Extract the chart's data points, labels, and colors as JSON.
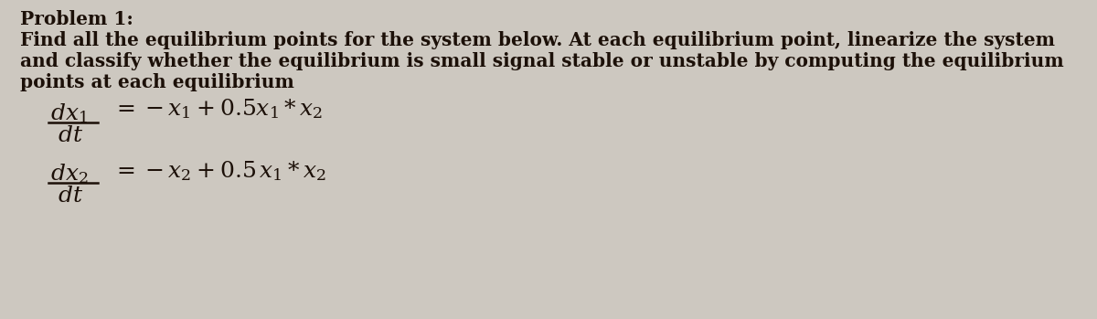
{
  "background_color": "#cdc8c0",
  "problem_label": "Problem 1:",
  "description_line1": "Find all the equilibrium points for the system below. At each equilibrium point, linearize the system",
  "description_line2": "and classify whether the equilibrium is small signal stable or unstable by computing the equilibrium",
  "description_line3": "points at each equilibrium",
  "text_color": "#1c1008",
  "font_size_body": 14.5,
  "font_size_problem": 14.5,
  "font_size_eq": 18,
  "fig_width": 12.0,
  "fig_height": 3.49,
  "dpi": 100
}
